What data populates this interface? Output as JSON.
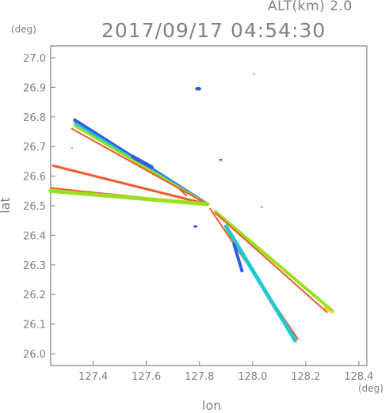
{
  "header": {
    "altitude_label": "ALT(km)  2.0",
    "timestamp": "2017/09/17  04:54:30"
  },
  "chart_data": {
    "type": "scatter",
    "title": "",
    "xlabel": "lon",
    "ylabel": "lat",
    "x_unit": "(deg)",
    "y_unit": "(deg)",
    "xlim": [
      127.24,
      128.43
    ],
    "ylim": [
      25.96,
      27.04
    ],
    "x_ticks": [
      127.4,
      127.6,
      127.8,
      128.0,
      128.2,
      128.4
    ],
    "y_ticks": [
      26.0,
      26.1,
      26.2,
      26.3,
      26.4,
      26.5,
      26.6,
      26.7,
      26.8,
      26.9,
      27.0
    ],
    "x_tick_labels": [
      "127.4",
      "127.6",
      "127.8",
      "128.0",
      "128.2",
      "128.4"
    ],
    "y_tick_labels": [
      "26.0",
      "26.1",
      "26.2",
      "26.3",
      "26.4",
      "26.5",
      "26.6",
      "26.7",
      "26.8",
      "26.9",
      "27.0"
    ],
    "grid": false,
    "radar_center": [
      127.83,
      26.505
    ],
    "strokes": [
      {
        "from": [
          127.83,
          26.505
        ],
        "to": [
          127.33,
          26.79
        ],
        "color": "#2f5fe0",
        "width": 4
      },
      {
        "from": [
          127.83,
          26.505
        ],
        "to": [
          127.33,
          26.78
        ],
        "color": "#22c8d0",
        "width": 3
      },
      {
        "from": [
          127.83,
          26.505
        ],
        "to": [
          127.33,
          26.77
        ],
        "color": "#9be020",
        "width": 3
      },
      {
        "from": [
          127.83,
          26.505
        ],
        "to": [
          127.32,
          26.76
        ],
        "color": "#ef5a2a",
        "width": 2
      },
      {
        "from": [
          127.83,
          26.505
        ],
        "to": [
          127.25,
          26.635
        ],
        "color": "#ef5a2a",
        "width": 3
      },
      {
        "from": [
          127.75,
          26.535
        ],
        "to": [
          127.72,
          26.56
        ],
        "color": "#ef5a2a",
        "width": 2
      },
      {
        "from": [
          127.83,
          26.505
        ],
        "to": [
          127.24,
          26.56
        ],
        "color": "#ef5a2a",
        "width": 2
      },
      {
        "from": [
          127.83,
          26.505
        ],
        "to": [
          127.24,
          26.55
        ],
        "color": "#9be020",
        "width": 5
      },
      {
        "from": [
          127.84,
          26.49
        ],
        "to": [
          128.17,
          26.05
        ],
        "color": "#ef5a2a",
        "width": 2
      },
      {
        "from": [
          127.9,
          26.43
        ],
        "to": [
          128.16,
          26.045
        ],
        "color": "#22c8d0",
        "width": 5
      },
      {
        "from": [
          127.93,
          26.37
        ],
        "to": [
          127.96,
          26.28
        ],
        "color": "#2f5fe0",
        "width": 4
      },
      {
        "from": [
          127.86,
          26.48
        ],
        "to": [
          128.3,
          26.145
        ],
        "color": "#9be020",
        "width": 4
      },
      {
        "from": [
          127.86,
          26.475
        ],
        "to": [
          128.28,
          26.14
        ],
        "color": "#ef5a2a",
        "width": 2
      },
      {
        "from": [
          128.27,
          26.155
        ],
        "to": [
          128.3,
          26.14
        ],
        "color": "#f2d020",
        "width": 3
      },
      {
        "from": [
          127.55,
          26.665
        ],
        "to": [
          127.62,
          26.63
        ],
        "color": "#2f5fe0",
        "width": 5
      }
    ],
    "blobs": [
      {
        "at": [
          127.795,
          26.895
        ],
        "color": "#2f5fe0",
        "size": 3
      },
      {
        "at": [
          127.88,
          26.655
        ],
        "color": "#2f5fe0",
        "size": 1.5
      },
      {
        "at": [
          127.785,
          26.43
        ],
        "color": "#2f5fe0",
        "size": 2
      },
      {
        "at": [
          128.035,
          26.495
        ],
        "color": "#2f5fe0",
        "size": 1
      },
      {
        "at": [
          128.005,
          26.945
        ],
        "color": "#2f5fe0",
        "size": 1
      },
      {
        "at": [
          127.32,
          26.695
        ],
        "color": "#ef5a2a",
        "size": 1
      }
    ]
  }
}
